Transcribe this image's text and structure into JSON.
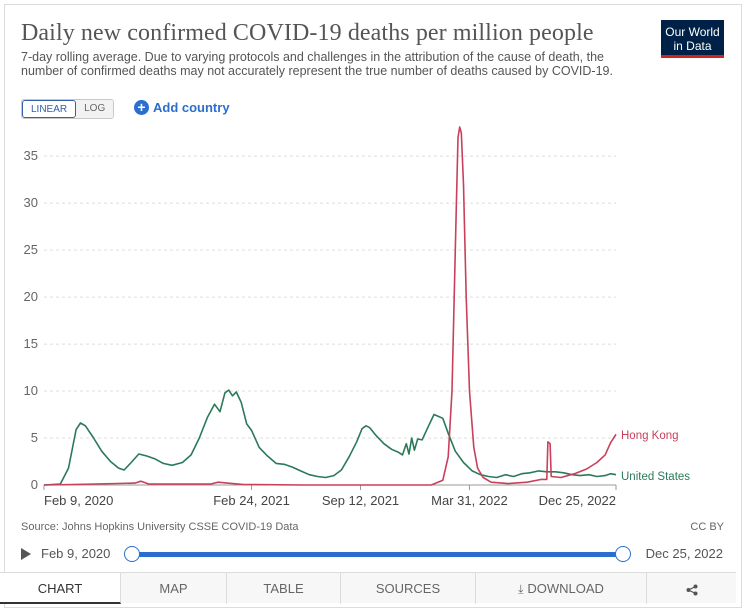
{
  "header": {
    "title": "Daily new confirmed COVID-19 deaths per million people",
    "subtitle": "7-day rolling average. Due to varying protocols and challenges in the attribution of the cause of death, the number of confirmed deaths may not accurately represent the true number of deaths caused by COVID-19.",
    "logo_line1": "Our World",
    "logo_line2": "in Data"
  },
  "controls": {
    "linear_label": "LINEAR",
    "log_label": "LOG",
    "add_country_label": "Add country"
  },
  "footer": {
    "source": "Source: Johns Hopkins University CSSE COVID-19 Data",
    "license": "CC BY"
  },
  "timeline": {
    "start_label": "Feb 9, 2020",
    "end_label": "Dec 25, 2022"
  },
  "tabs": [
    {
      "label": "CHART"
    },
    {
      "label": "MAP"
    },
    {
      "label": "TABLE"
    },
    {
      "label": "SOURCES"
    },
    {
      "label": "DOWNLOAD"
    },
    {
      "label": ""
    }
  ],
  "colors": {
    "hong_kong": "#c8405a",
    "united_states": "#2a7a5a",
    "accent": "#2a6ecf",
    "grid": "#dddddd"
  },
  "chart_data": {
    "type": "line",
    "title": "Daily new confirmed COVID-19 deaths per million people",
    "xlabel": "",
    "ylabel": "",
    "ylim": [
      0,
      38
    ],
    "yticks": [
      0,
      5,
      10,
      15,
      20,
      25,
      30,
      35
    ],
    "xrange": [
      "2020-02-09",
      "2022-12-25"
    ],
    "xticks": [
      {
        "date": "2020-02-09",
        "label": "Feb 9, 2020"
      },
      {
        "date": "2021-02-24",
        "label": "Feb 24, 2021"
      },
      {
        "date": "2021-09-12",
        "label": "Sep 12, 2021"
      },
      {
        "date": "2022-03-31",
        "label": "Mar 31, 2022"
      },
      {
        "date": "2022-12-25",
        "label": "Dec 25, 2022"
      }
    ],
    "grid": true,
    "legend": "inline-right",
    "series": [
      {
        "name": "United States",
        "points": [
          [
            "2020-02-09",
            0
          ],
          [
            "2020-03-10",
            0.1
          ],
          [
            "2020-03-25",
            1.8
          ],
          [
            "2020-04-08",
            5.9
          ],
          [
            "2020-04-16",
            6.6
          ],
          [
            "2020-04-25",
            6.3
          ],
          [
            "2020-05-10",
            5.0
          ],
          [
            "2020-05-25",
            3.6
          ],
          [
            "2020-06-10",
            2.5
          ],
          [
            "2020-06-25",
            1.8
          ],
          [
            "2020-07-05",
            1.6
          ],
          [
            "2020-07-18",
            2.4
          ],
          [
            "2020-08-01",
            3.3
          ],
          [
            "2020-08-15",
            3.1
          ],
          [
            "2020-08-30",
            2.8
          ],
          [
            "2020-09-15",
            2.3
          ],
          [
            "2020-10-01",
            2.1
          ],
          [
            "2020-10-20",
            2.4
          ],
          [
            "2020-11-05",
            3.2
          ],
          [
            "2020-11-20",
            5.0
          ],
          [
            "2020-12-05",
            7.2
          ],
          [
            "2020-12-18",
            8.6
          ],
          [
            "2020-12-28",
            7.8
          ],
          [
            "2021-01-06",
            9.8
          ],
          [
            "2021-01-13",
            10.1
          ],
          [
            "2021-01-20",
            9.5
          ],
          [
            "2021-01-27",
            9.9
          ],
          [
            "2021-02-05",
            8.8
          ],
          [
            "2021-02-15",
            6.5
          ],
          [
            "2021-02-24",
            5.8
          ],
          [
            "2021-03-10",
            4.0
          ],
          [
            "2021-03-25",
            3.1
          ],
          [
            "2021-04-10",
            2.3
          ],
          [
            "2021-04-25",
            2.2
          ],
          [
            "2021-05-10",
            1.9
          ],
          [
            "2021-05-25",
            1.5
          ],
          [
            "2021-06-10",
            1.1
          ],
          [
            "2021-06-25",
            0.9
          ],
          [
            "2021-07-10",
            0.8
          ],
          [
            "2021-07-25",
            1.0
          ],
          [
            "2021-08-08",
            1.6
          ],
          [
            "2021-08-22",
            3.0
          ],
          [
            "2021-09-05",
            4.6
          ],
          [
            "2021-09-15",
            6.0
          ],
          [
            "2021-09-22",
            6.3
          ],
          [
            "2021-09-29",
            6.1
          ],
          [
            "2021-10-10",
            5.3
          ],
          [
            "2021-10-25",
            4.4
          ],
          [
            "2021-11-08",
            3.8
          ],
          [
            "2021-11-20",
            3.5
          ],
          [
            "2021-11-28",
            3.2
          ],
          [
            "2021-12-05",
            4.4
          ],
          [
            "2021-12-10",
            3.3
          ],
          [
            "2021-12-15",
            5.0
          ],
          [
            "2021-12-20",
            3.7
          ],
          [
            "2021-12-26",
            4.9
          ],
          [
            "2022-01-03",
            4.8
          ],
          [
            "2022-01-15",
            6.3
          ],
          [
            "2022-01-25",
            7.5
          ],
          [
            "2022-02-02",
            7.3
          ],
          [
            "2022-02-10",
            7.1
          ],
          [
            "2022-02-20",
            5.5
          ],
          [
            "2022-03-05",
            3.6
          ],
          [
            "2022-03-20",
            2.4
          ],
          [
            "2022-04-05",
            1.5
          ],
          [
            "2022-04-20",
            1.1
          ],
          [
            "2022-05-05",
            0.9
          ],
          [
            "2022-05-20",
            0.8
          ],
          [
            "2022-06-05",
            1.1
          ],
          [
            "2022-06-20",
            0.9
          ],
          [
            "2022-07-05",
            1.2
          ],
          [
            "2022-07-20",
            1.3
          ],
          [
            "2022-08-05",
            1.5
          ],
          [
            "2022-08-20",
            1.4
          ],
          [
            "2022-09-05",
            1.4
          ],
          [
            "2022-09-20",
            1.3
          ],
          [
            "2022-10-05",
            1.1
          ],
          [
            "2022-10-20",
            1.0
          ],
          [
            "2022-11-05",
            1.1
          ],
          [
            "2022-11-20",
            0.9
          ],
          [
            "2022-12-05",
            1.0
          ],
          [
            "2022-12-15",
            1.2
          ],
          [
            "2022-12-25",
            1.1
          ]
        ]
      },
      {
        "name": "Hong Kong",
        "points": [
          [
            "2020-02-09",
            0
          ],
          [
            "2020-04-01",
            0.05
          ],
          [
            "2020-07-25",
            0.2
          ],
          [
            "2020-08-05",
            0.4
          ],
          [
            "2020-08-20",
            0.1
          ],
          [
            "2020-12-10",
            0.1
          ],
          [
            "2020-12-25",
            0.3
          ],
          [
            "2021-01-10",
            0.2
          ],
          [
            "2021-02-10",
            0.05
          ],
          [
            "2021-06-01",
            0.0
          ],
          [
            "2022-01-20",
            0.0
          ],
          [
            "2022-02-10",
            0.5
          ],
          [
            "2022-02-20",
            3.0
          ],
          [
            "2022-02-27",
            10.0
          ],
          [
            "2022-03-03",
            20.0
          ],
          [
            "2022-03-07",
            30.0
          ],
          [
            "2022-03-10",
            37.0
          ],
          [
            "2022-03-13",
            38.1
          ],
          [
            "2022-03-16",
            37.5
          ],
          [
            "2022-03-20",
            32.0
          ],
          [
            "2022-03-25",
            20.0
          ],
          [
            "2022-03-31",
            10.0
          ],
          [
            "2022-04-08",
            4.0
          ],
          [
            "2022-04-15",
            1.8
          ],
          [
            "2022-04-25",
            0.8
          ],
          [
            "2022-05-10",
            0.3
          ],
          [
            "2022-06-10",
            0.15
          ],
          [
            "2022-07-15",
            0.3
          ],
          [
            "2022-08-10",
            0.6
          ],
          [
            "2022-08-20",
            0.6
          ],
          [
            "2022-08-22",
            4.6
          ],
          [
            "2022-08-26",
            4.4
          ],
          [
            "2022-08-28",
            0.9
          ],
          [
            "2022-09-15",
            0.8
          ],
          [
            "2022-10-10",
            1.2
          ],
          [
            "2022-11-01",
            1.7
          ],
          [
            "2022-11-20",
            2.4
          ],
          [
            "2022-12-05",
            3.2
          ],
          [
            "2022-12-15",
            4.5
          ],
          [
            "2022-12-25",
            5.4
          ]
        ]
      }
    ]
  }
}
